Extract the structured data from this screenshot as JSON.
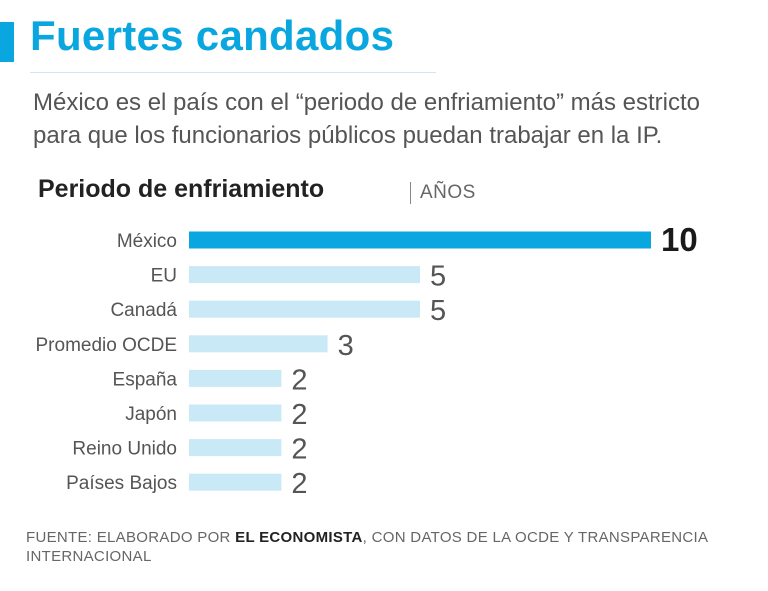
{
  "header": {
    "title": "Fuertes candados",
    "subtitle": "México es el país con el “periodo de enfriamiento” más estricto para que los funcionarios públicos puedan trabajar en la IP."
  },
  "chart_data": {
    "type": "bar",
    "orientation": "horizontal",
    "title": "Periodo de enfriamiento",
    "unit": "AÑOS",
    "categories": [
      "México",
      "EU",
      "Canadá",
      "Promedio OCDE",
      "España",
      "Japón",
      "Reino Unido",
      "Países Bajos"
    ],
    "values": [
      10,
      5,
      5,
      3,
      2,
      2,
      2,
      2
    ],
    "highlight": "México",
    "colors": {
      "highlight": "#0aa6df",
      "bar": "#c9e9f7"
    },
    "xlim": [
      0,
      10
    ],
    "grid": false
  },
  "source": {
    "prefix": "FUENTE: ELABORADO POR ",
    "bold": "EL ECONOMISTA",
    "suffix": ", CON DATOS DE LA OCDE Y TRANSPARENCIA INTERNACIONAL"
  }
}
